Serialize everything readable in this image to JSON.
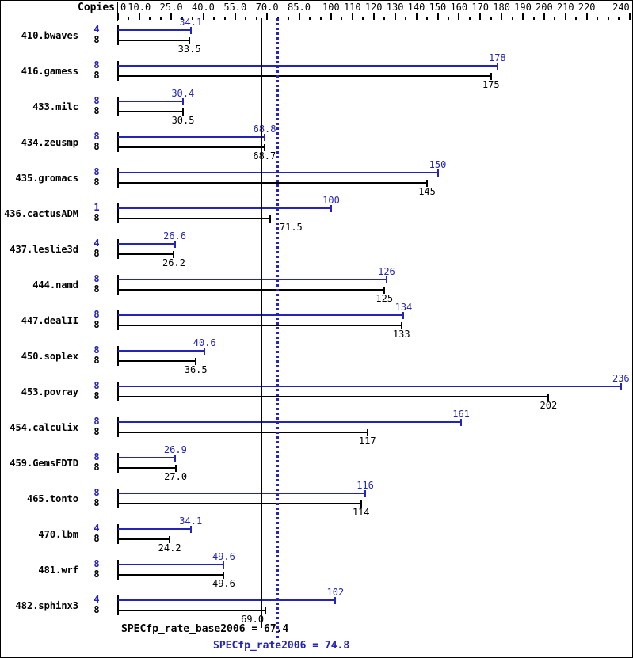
{
  "header": {
    "copies_label": "Copies"
  },
  "colors": {
    "peak_blue": "#2424bb",
    "base_black": "#000000"
  },
  "axis": {
    "labels": [
      {
        "v": 0,
        "t": "0"
      },
      {
        "v": 10,
        "t": "10.0"
      },
      {
        "v": 25,
        "t": "25.0"
      },
      {
        "v": 40,
        "t": "40.0"
      },
      {
        "v": 55,
        "t": "55.0"
      },
      {
        "v": 70,
        "t": "70.0"
      },
      {
        "v": 85,
        "t": "85.0"
      },
      {
        "v": 100,
        "t": "100"
      },
      {
        "v": 110,
        "t": "110"
      },
      {
        "v": 120,
        "t": "120"
      },
      {
        "v": 130,
        "t": "130"
      },
      {
        "v": 140,
        "t": "140"
      },
      {
        "v": 150,
        "t": "150"
      },
      {
        "v": 160,
        "t": "160"
      },
      {
        "v": 170,
        "t": "170"
      },
      {
        "v": 180,
        "t": "180"
      },
      {
        "v": 190,
        "t": "190"
      },
      {
        "v": 200,
        "t": "200"
      },
      {
        "v": 210,
        "t": "210"
      },
      {
        "v": 220,
        "t": "220"
      },
      {
        "v": 240,
        "t": "240"
      }
    ],
    "minor_step": 5,
    "max": 240
  },
  "chart_data": {
    "type": "bar",
    "orientation": "horizontal",
    "title": "",
    "xlabel": "",
    "ylabel": "Copies",
    "xlim": [
      0,
      242
    ],
    "legend": [
      "SPECfp_rate2006 (peak, blue)",
      "SPECfp_rate_base2006 (base, black)"
    ],
    "benchmarks": [
      {
        "name": "410.bwaves",
        "peak_copies": "4",
        "base_copies": "8",
        "peak": 34.1,
        "peak_label": "34.1",
        "base": 33.5,
        "base_label": "33.5"
      },
      {
        "name": "416.gamess",
        "peak_copies": "8",
        "base_copies": "8",
        "peak": 178,
        "peak_label": "178",
        "base": 175,
        "base_label": "175"
      },
      {
        "name": "433.milc",
        "peak_copies": "8",
        "base_copies": "8",
        "peak": 30.4,
        "peak_label": "30.4",
        "base": 30.5,
        "base_label": "30.5"
      },
      {
        "name": "434.zeusmp",
        "peak_copies": "8",
        "base_copies": "8",
        "peak": 68.8,
        "peak_label": "68.8",
        "base": 68.7,
        "base_label": "68.7"
      },
      {
        "name": "435.gromacs",
        "peak_copies": "8",
        "base_copies": "8",
        "peak": 150,
        "peak_label": "150",
        "base": 145,
        "base_label": "145"
      },
      {
        "name": "436.cactusADM",
        "peak_copies": "1",
        "base_copies": "8",
        "peak": 100,
        "peak_label": "100",
        "base": 71.5,
        "base_label": "71.5",
        "base_label_dx": 26
      },
      {
        "name": "437.leslie3d",
        "peak_copies": "4",
        "base_copies": "8",
        "peak": 26.6,
        "peak_label": "26.6",
        "base": 26.2,
        "base_label": "26.2"
      },
      {
        "name": "444.namd",
        "peak_copies": "8",
        "base_copies": "8",
        "peak": 126,
        "peak_label": "126",
        "base": 125,
        "base_label": "125"
      },
      {
        "name": "447.dealII",
        "peak_copies": "8",
        "base_copies": "8",
        "peak": 134,
        "peak_label": "134",
        "base": 133,
        "base_label": "133"
      },
      {
        "name": "450.soplex",
        "peak_copies": "8",
        "base_copies": "8",
        "peak": 40.6,
        "peak_label": "40.6",
        "base": 36.5,
        "base_label": "36.5"
      },
      {
        "name": "453.povray",
        "peak_copies": "8",
        "base_copies": "8",
        "peak": 236,
        "peak_label": "236",
        "base": 202,
        "base_label": "202"
      },
      {
        "name": "454.calculix",
        "peak_copies": "8",
        "base_copies": "8",
        "peak": 161,
        "peak_label": "161",
        "base": 117,
        "base_label": "117"
      },
      {
        "name": "459.GemsFDTD",
        "peak_copies": "8",
        "base_copies": "8",
        "peak": 26.9,
        "peak_label": "26.9",
        "base": 27.0,
        "base_label": "27.0"
      },
      {
        "name": "465.tonto",
        "peak_copies": "8",
        "base_copies": "8",
        "peak": 116,
        "peak_label": "116",
        "base": 114,
        "base_label": "114"
      },
      {
        "name": "470.lbm",
        "peak_copies": "4",
        "base_copies": "8",
        "peak": 34.1,
        "peak_label": "34.1",
        "base": 24.2,
        "base_label": "24.2"
      },
      {
        "name": "481.wrf",
        "peak_copies": "8",
        "base_copies": "8",
        "peak": 49.6,
        "peak_label": "49.6",
        "base": 49.6,
        "base_label": "49.6"
      },
      {
        "name": "482.sphinx3",
        "peak_copies": "4",
        "base_copies": "8",
        "peak": 102,
        "peak_label": "102",
        "base": 69.0,
        "base_label": "69.0",
        "base_label_dx": -16
      }
    ],
    "summary": {
      "base_text": "SPECfp_rate_base2006 = 67.4",
      "base_value": 67.4,
      "peak_text": "SPECfp_rate2006 = 74.8",
      "peak_value": 74.8
    }
  }
}
